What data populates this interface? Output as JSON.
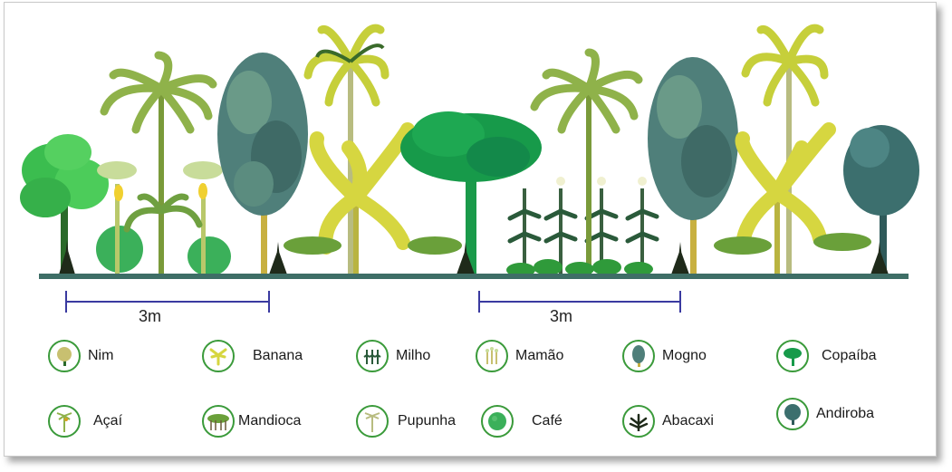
{
  "scale": {
    "left_label": "3m",
    "right_label": "3m"
  },
  "legend": [
    {
      "label": "Nim",
      "icon": "nim-tree-icon"
    },
    {
      "label": "Banana",
      "icon": "banana-plant-icon"
    },
    {
      "label": "Milho",
      "icon": "corn-plant-icon"
    },
    {
      "label": "Mamão",
      "icon": "papaya-tree-icon"
    },
    {
      "label": "Mogno",
      "icon": "mahogany-tree-icon"
    },
    {
      "label": "Copaíba",
      "icon": "copaiba-tree-icon"
    },
    {
      "label": "Açaí",
      "icon": "acai-palm-icon"
    },
    {
      "label": "Mandioca",
      "icon": "cassava-plant-icon"
    },
    {
      "label": "Pupunha",
      "icon": "peach-palm-icon"
    },
    {
      "label": "Café",
      "icon": "coffee-plant-icon"
    },
    {
      "label": "Abacaxi",
      "icon": "pineapple-plant-icon"
    },
    {
      "label": "Andiroba",
      "icon": "andiroba-tree-icon"
    }
  ],
  "colors": {
    "ground": "#3e6e66",
    "scale_bar": "#3a3aa0",
    "nim": "#2ea84a",
    "copaiba": "#179a4a",
    "mogno": "#4f7f7a",
    "andiroba": "#3c6f6e",
    "palm": "#8fb24a",
    "banana": "#d6d640",
    "coffee": "#2f9a3a",
    "pineapple": "#1f2a1a",
    "cassava": "#6aa03a",
    "corn": "#3a6040",
    "legend_ring": "#3a9a3a"
  }
}
